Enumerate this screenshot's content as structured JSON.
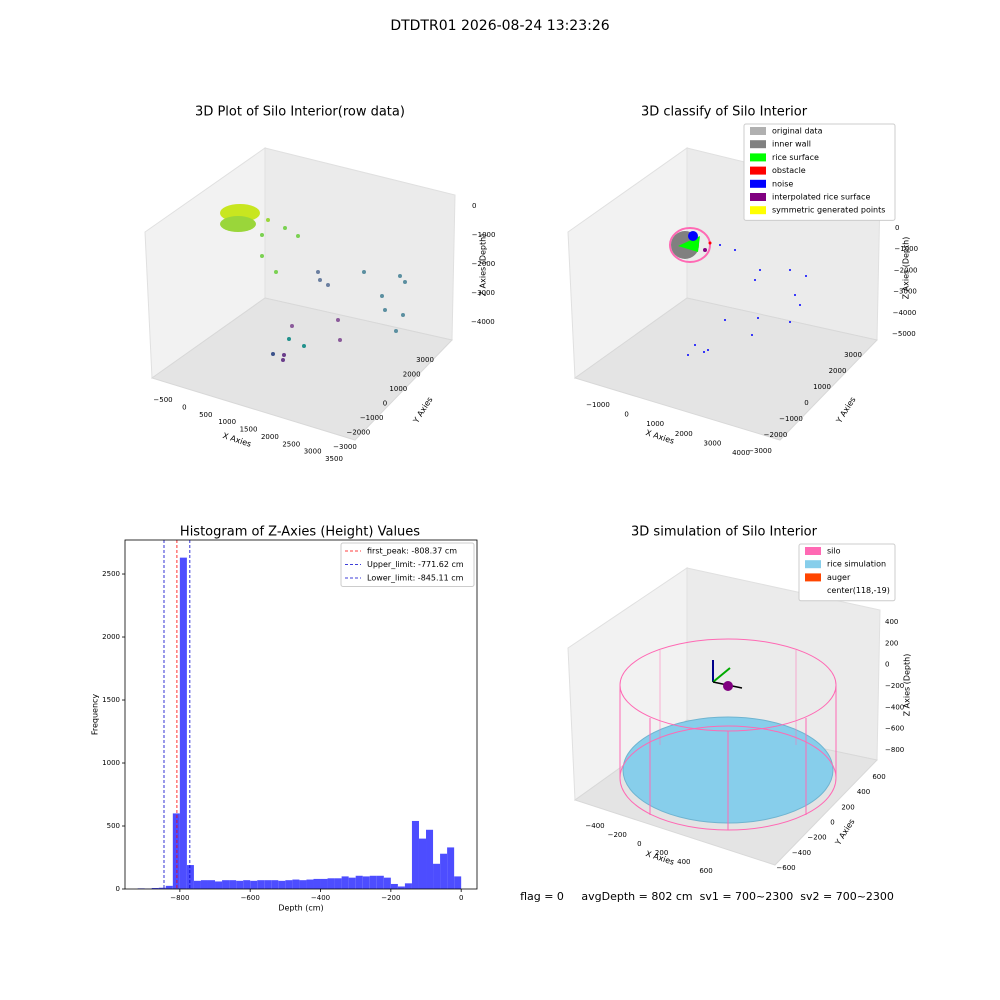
{
  "title": "DTDTR01 2026-08-24 13:23:26",
  "footer": "flag = 0     avgDepth = 802 cm  sv1 = 700~2300  sv2 = 700~2300",
  "chart_data": [
    {
      "type": "scatter3d",
      "title": "3D Plot of Silo Interior(row data)",
      "xlabel": "X Axies",
      "ylabel": "Y Axies",
      "zlabel": "Z Axies (Depth)",
      "xticks": [
        {
          "value": -500,
          "label": "−500"
        },
        0,
        500,
        1000,
        1500,
        2000,
        2500,
        3000,
        3500
      ],
      "yticks": [
        3000,
        2000,
        1000,
        0,
        {
          "value": -1000,
          "label": "−1000"
        },
        {
          "value": -2000,
          "label": "−2000"
        },
        {
          "value": -3000,
          "label": "−3000"
        }
      ],
      "zticks": [
        0,
        {
          "value": -1000,
          "label": "−1000"
        },
        {
          "value": -2000,
          "label": "−2000"
        },
        {
          "value": -3000,
          "label": "−3000"
        },
        {
          "value": -4000,
          "label": "−4000"
        }
      ]
    },
    {
      "type": "scatter3d",
      "title": "3D classify of Silo Interior",
      "xlabel": "X Axies",
      "ylabel": "Y Axies",
      "zlabel": "Z Axies (Depth)",
      "xticks": [
        {
          "value": -1000,
          "label": "−1000"
        },
        0,
        1000,
        2000,
        3000,
        4000
      ],
      "yticks": [
        3000,
        2000,
        1000,
        0,
        {
          "value": -1000,
          "label": "−1000"
        },
        {
          "value": -2000,
          "label": "−2000"
        },
        {
          "value": -3000,
          "label": "−3000"
        }
      ],
      "zticks": [
        0,
        {
          "value": -1000,
          "label": "−1000"
        },
        {
          "value": -2000,
          "label": "−2000"
        },
        {
          "value": -3000,
          "label": "−3000"
        },
        {
          "value": -4000,
          "label": "−4000"
        },
        {
          "value": -5000,
          "label": "−5000"
        }
      ],
      "legend": [
        {
          "name": "original data",
          "color": "#b0b0b0"
        },
        {
          "name": "inner wall",
          "color": "#808080"
        },
        {
          "name": "rice surface",
          "color": "#00ff00"
        },
        {
          "name": "obstacle",
          "color": "#ff0000"
        },
        {
          "name": "noise",
          "color": "#0000ff"
        },
        {
          "name": "interpolated rice surface",
          "color": "#800080"
        },
        {
          "name": "symmetric generated points",
          "color": "#ffff00"
        }
      ]
    },
    {
      "type": "histogram",
      "title": "Histogram of Z-Axies (Height) Values",
      "xlabel": "Depth (cm)",
      "ylabel": "Frequency",
      "color": "#4d4dff",
      "bins": [
        -920,
        -900,
        -880,
        -860,
        -840,
        -820,
        -800,
        -780,
        -760,
        -740,
        -720,
        -700,
        -680,
        -660,
        -640,
        -620,
        -600,
        -580,
        -560,
        -540,
        -520,
        -500,
        -480,
        -460,
        -440,
        -420,
        -400,
        -380,
        -360,
        -340,
        -320,
        -300,
        -280,
        -260,
        -240,
        -220,
        -200,
        -180,
        -160,
        -140,
        -120,
        -100,
        -80,
        -60,
        -40,
        -20,
        0
      ],
      "values": [
        5,
        3,
        8,
        10,
        25,
        600,
        2630,
        190,
        65,
        70,
        70,
        60,
        70,
        70,
        65,
        70,
        65,
        70,
        70,
        70,
        65,
        70,
        75,
        70,
        75,
        80,
        80,
        85,
        85,
        100,
        90,
        105,
        100,
        105,
        105,
        90,
        40,
        20,
        45,
        540,
        400,
        470,
        200,
        280,
        330,
        100
      ],
      "xlim": [
        -956,
        45
      ],
      "ylim": [
        0,
        2770
      ],
      "xticks": [
        {
          "value": -800,
          "label": "−800"
        },
        {
          "value": -600,
          "label": "−600"
        },
        {
          "value": -400,
          "label": "−400"
        },
        {
          "value": -200,
          "label": "−200"
        },
        0
      ],
      "yticks": [
        0,
        500,
        1000,
        1500,
        2000,
        2500
      ],
      "lines": [
        {
          "name": "first_peak: -808.37 cm",
          "value": -808.37,
          "color": "#ff0000"
        },
        {
          "name": "Upper_limit: -771.62 cm",
          "value": -771.62,
          "color": "#0000cc"
        },
        {
          "name": "Lower_limit: -845.11 cm",
          "value": -845.11,
          "color": "#0000cc"
        }
      ]
    },
    {
      "type": "surface3d",
      "title": "3D simulation of Silo Interior",
      "xlabel": "X Axies",
      "ylabel": "Y Axies",
      "zlabel": "Z Axies (Depth)",
      "xticks": [
        {
          "value": -400,
          "label": "−400"
        },
        {
          "value": -200,
          "label": "−200"
        },
        0,
        200,
        400,
        600
      ],
      "yticks": [
        600,
        400,
        200,
        0,
        {
          "value": -200,
          "label": "−200"
        },
        {
          "value": -400,
          "label": "−400"
        },
        {
          "value": -600,
          "label": "−600"
        }
      ],
      "zticks": [
        400,
        200,
        0,
        {
          "value": -200,
          "label": "−200"
        },
        {
          "value": -400,
          "label": "−400"
        },
        {
          "value": -600,
          "label": "−600"
        },
        {
          "value": -800,
          "label": "−800"
        }
      ],
      "legend": [
        {
          "name": "silo",
          "color": "#ff69b4"
        },
        {
          "name": "rice simulation",
          "color": "#87ceeb"
        },
        {
          "name": "auger",
          "color": "#ff4500"
        },
        {
          "name": "center(118,-19)"
        }
      ]
    }
  ]
}
